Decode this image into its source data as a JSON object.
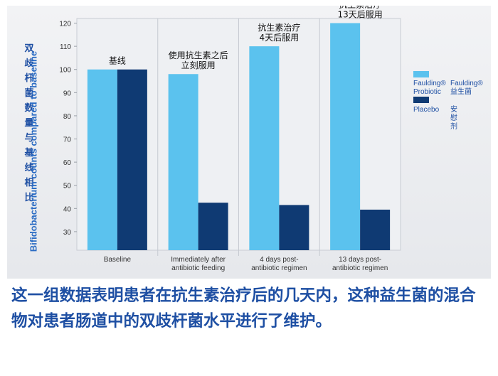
{
  "chart_data": {
    "type": "bar",
    "ylabel": "Bifidobacterium counts compared to baseline",
    "ylabel_zh": "双歧杆菌数量与基线相比",
    "ylim": [
      22,
      122
    ],
    "yticks": [
      30,
      40,
      50,
      60,
      70,
      80,
      90,
      100,
      110,
      120
    ],
    "grid": false,
    "legend_position": "right",
    "categories": [
      "Baseline",
      "Immediately after antibiotic feeding",
      "4 days post-antibiotic regimen",
      "13 days post-antibiotic regimen"
    ],
    "category_lines": [
      [
        "Baseline"
      ],
      [
        "Immediately after",
        "antibiotic feeding"
      ],
      [
        "4 days post-",
        "antibiotic regimen"
      ],
      [
        "13 days post-",
        "antibiotic regimen"
      ]
    ],
    "annotations": [
      [
        "基线"
      ],
      [
        "使用抗生素之后",
        "立刻服用"
      ],
      [
        "抗生素治疗",
        "4天后服用"
      ],
      [
        "抗生素治疗",
        "13天后服用"
      ]
    ],
    "series": [
      {
        "name": "Faulding® Probiotic",
        "name_zh": "Faulding® 益生菌",
        "color": "#5bc2ee",
        "values": [
          100,
          98,
          110,
          120
        ]
      },
      {
        "name": "Placebo",
        "name_zh": "安慰剂",
        "color": "#0f3a73",
        "values": [
          100,
          42.5,
          41.5,
          39.5
        ]
      }
    ]
  },
  "legend": {
    "probiotic_en": "Faulding®\nProbiotic",
    "probiotic_zh": "Faulding®\n益生菌",
    "placebo_en": "Placebo",
    "placebo_zh": "安慰剂"
  },
  "caption": "这一组数据表明患者在抗生素治疗后的几天内，这种益生菌的混合物对患者肠道中的双歧杆菌水平进行了维护。"
}
